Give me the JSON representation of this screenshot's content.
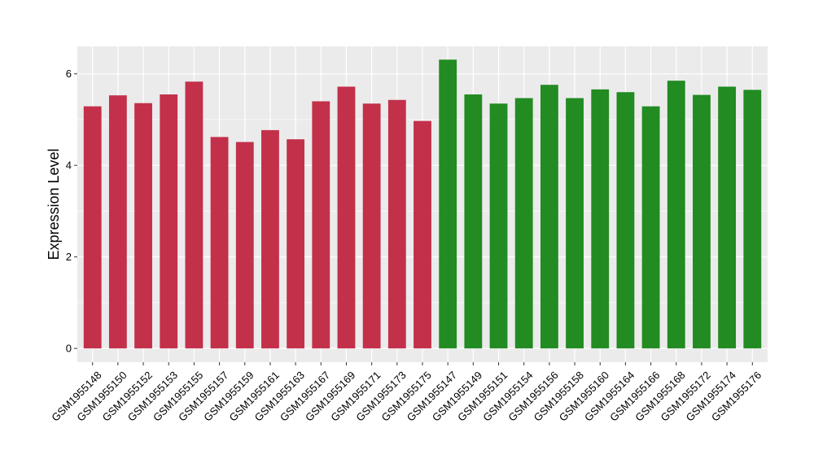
{
  "chart_data": {
    "type": "bar",
    "ylabel": "Expression Level",
    "xlabel": "",
    "ylim": [
      -0.3,
      6.6
    ],
    "yticks": [
      0,
      2,
      4,
      6
    ],
    "grid": true,
    "background": "#ebebeb",
    "gridline_color": "#ffffff",
    "series": [
      {
        "color": "#c3304a",
        "categories": [
          "GSM1955148",
          "GSM1955150",
          "GSM1955152",
          "GSM1955153",
          "GSM1955155",
          "GSM1955157",
          "GSM1955159",
          "GSM1955161",
          "GSM1955163",
          "GSM1955167",
          "GSM1955169",
          "GSM1955171",
          "GSM1955173",
          "GSM1955175"
        ],
        "values": [
          5.29,
          5.53,
          5.36,
          5.55,
          5.83,
          4.62,
          4.51,
          4.77,
          4.57,
          5.4,
          5.72,
          5.35,
          5.43,
          4.97
        ]
      },
      {
        "color": "#228b22",
        "categories": [
          "GSM1955147",
          "GSM1955149",
          "GSM1955151",
          "GSM1955154",
          "GSM1955156",
          "GSM1955158",
          "GSM1955160",
          "GSM1955164",
          "GSM1955166",
          "GSM1955168",
          "GSM1955172",
          "GSM1955174",
          "GSM1955176"
        ],
        "values": [
          6.31,
          5.55,
          5.35,
          5.47,
          5.76,
          5.47,
          5.66,
          5.6,
          5.29,
          5.85,
          5.54,
          5.72,
          5.65
        ]
      }
    ]
  }
}
